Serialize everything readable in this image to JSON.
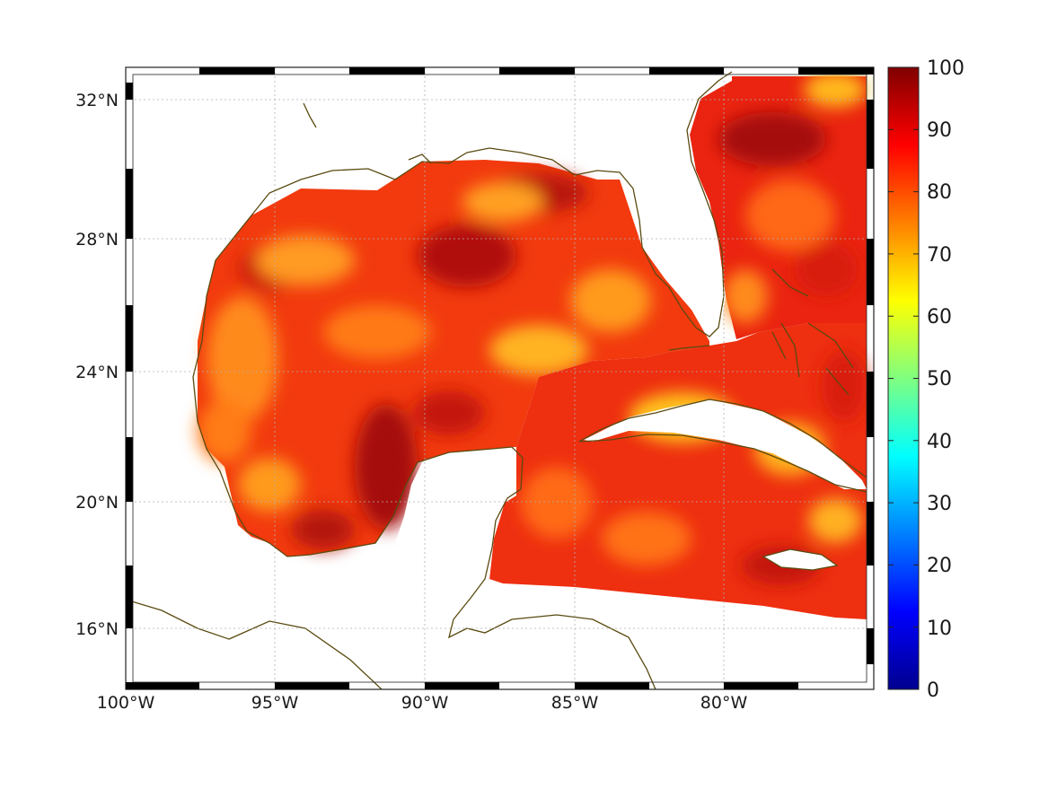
{
  "map": {
    "lat_labels": [
      "32°N",
      "28°N",
      "24°N",
      "20°N",
      "16°N"
    ],
    "lon_labels": [
      "100°W",
      "95°W",
      "90°W",
      "85°W",
      "80°W"
    ],
    "extent": {
      "lon_min": -100,
      "lon_max": -75,
      "lat_min": 14,
      "lat_max": 33
    },
    "coastline_color": "#5a4a10",
    "grid": "dotted"
  },
  "colorbar": {
    "ticks": [
      "100",
      "90",
      "80",
      "70",
      "60",
      "50",
      "40",
      "30",
      "20",
      "10",
      "0"
    ],
    "range": [
      0,
      100
    ],
    "colormap": "jet"
  }
}
